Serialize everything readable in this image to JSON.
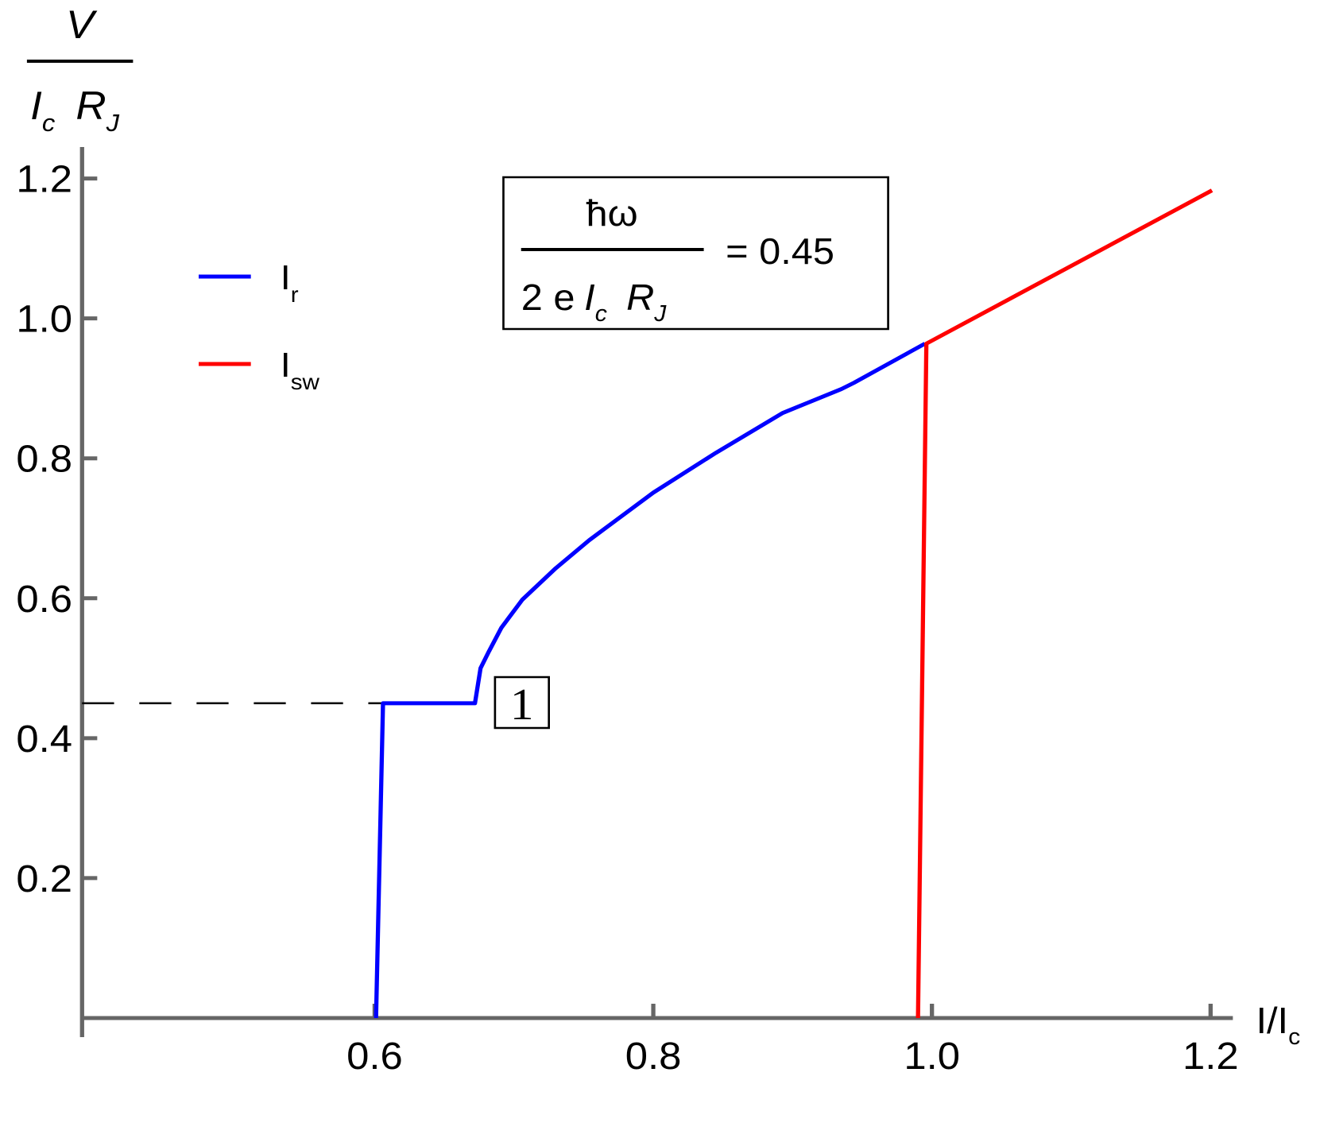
{
  "chart_data": {
    "type": "line",
    "y_label": {
      "numerator": "V",
      "denominator": [
        {
          "text": "I",
          "sub": "c"
        },
        {
          "text": "R",
          "sub": "J"
        }
      ]
    },
    "x_label": {
      "text": "I/I",
      "sub": "c"
    },
    "annotation": {
      "numerator": "ħω",
      "denominator_prefix": "2 e",
      "denominator": [
        {
          "text": "I",
          "sub": "c"
        },
        {
          "text": "R",
          "sub": "J"
        }
      ],
      "rhs": "= 0.45"
    },
    "step_label": "1",
    "reference_y": 0.45,
    "xlim": [
      0.39,
      1.216
    ],
    "ylim": [
      0,
      1.245
    ],
    "xticks": [
      0.6,
      0.8,
      {
        "value": 1,
        "label": "1.0"
      },
      1.2
    ],
    "yticks": [
      0.2,
      0.4,
      0.6,
      0.8,
      {
        "value": 1,
        "label": "1.0"
      },
      1.2
    ],
    "series": [
      {
        "name": "Ir",
        "color": "#0000ff",
        "x": [
          0.601,
          0.606,
          0.672,
          0.676,
          0.682,
          0.691,
          0.706,
          0.73,
          0.754,
          0.8,
          0.845,
          0.893,
          0.935,
          0.944,
          0.995
        ],
        "values": [
          0,
          0.45,
          0.45,
          0.5,
          0.524,
          0.558,
          0.598,
          0.643,
          0.683,
          0.751,
          0.808,
          0.865,
          0.899,
          0.908,
          0.964
        ]
      },
      {
        "name": "Isw",
        "color": "#ff0000",
        "x": [
          0.99,
          0.996,
          1.201
        ],
        "values": [
          0,
          0.964,
          1.183
        ]
      }
    ]
  }
}
